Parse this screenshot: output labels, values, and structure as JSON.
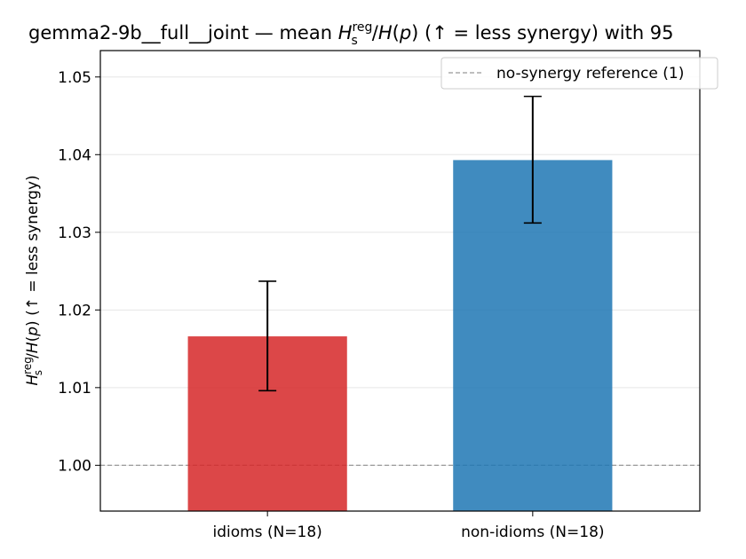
{
  "chart_data": {
    "type": "bar",
    "title_lead": "gemma2-9b__full__joint — mean ",
    "title_tail": "  (↑ = less synergy) with 95",
    "ylabel_tail": "  (↑ = less synergy)",
    "categories": [
      "idioms (N=18)",
      "non-idioms (N=18)"
    ],
    "values": [
      1.0166,
      1.0393
    ],
    "ci_low": [
      1.0096,
      1.0312
    ],
    "ci_high": [
      1.0237,
      1.0475
    ],
    "bar_colors": [
      "#d62728",
      "#1f77b4"
    ],
    "ylim": [
      0.9941,
      1.0534
    ],
    "yticks": [
      1.0,
      1.01,
      1.02,
      1.03,
      1.04,
      1.05
    ],
    "yticklabels": [
      "1.00",
      "1.01",
      "1.02",
      "1.03",
      "1.04",
      "1.05"
    ],
    "reference_line": {
      "value": 1.0,
      "label": "no-synergy reference (1)",
      "color": "#999999"
    },
    "legend_position": "top-right",
    "grid": "y"
  }
}
